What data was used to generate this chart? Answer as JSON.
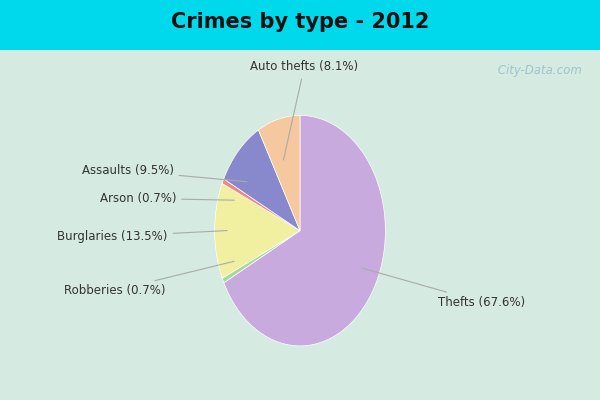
{
  "title": "Crimes by type - 2012",
  "title_fontsize": 15,
  "title_fontweight": "bold",
  "slices": [
    {
      "label": "Thefts (67.6%)",
      "pct": 67.6,
      "color": "#c8aade"
    },
    {
      "label": "Robberies (0.7%)",
      "pct": 0.7,
      "color": "#a8d8a0"
    },
    {
      "label": "Burglaries (13.5%)",
      "pct": 13.5,
      "color": "#f0f0a0"
    },
    {
      "label": "Arson (0.7%)",
      "pct": 0.7,
      "color": "#f08888"
    },
    {
      "label": "Assaults (9.5%)",
      "pct": 9.5,
      "color": "#8888cc"
    },
    {
      "label": "Auto thefts (8.1%)",
      "pct": 8.1,
      "color": "#f5c8a0"
    }
  ],
  "startangle": 90,
  "bg_cyan": "#00d8ec",
  "bg_inner": "#d5eae0",
  "label_fontsize": 8.5,
  "label_color": "#333333",
  "line_color": "#aaaaaa",
  "watermark": " City-Data.com"
}
